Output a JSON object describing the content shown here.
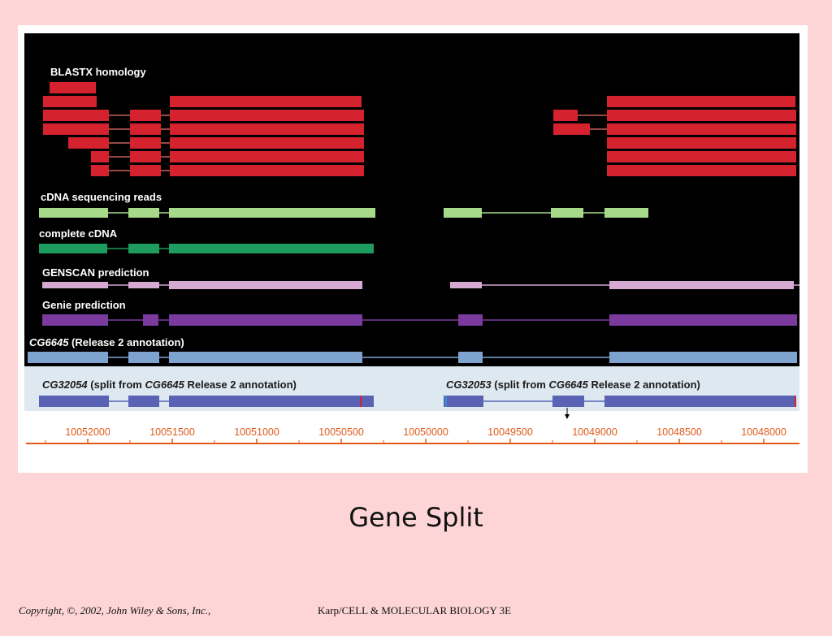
{
  "slide": {
    "title": "Gene Split",
    "copyright": "Copyright, ©, 2002, John Wiley & Sons, Inc.,",
    "source": "Karp/CELL & MOLECULAR BIOLOGY 3E"
  },
  "colors": {
    "background": "#fdd5d6",
    "panel": "#000000",
    "blastx": "#d4222e",
    "cdna_reads": "#a6d98a",
    "complete_cdna": "#1e9b5e",
    "genscan": "#d6a9d3",
    "genie": "#7b3b9e",
    "release2": "#7ea3cf",
    "split": "#5a62b4",
    "axis": "#e05a1a"
  },
  "tracks": {
    "blastx": {
      "label": "BLASTX homology"
    },
    "cdna_reads": {
      "label": "cDNA sequencing reads"
    },
    "complete_cdna": {
      "label": "complete cDNA"
    },
    "genscan": {
      "label": "GENSCAN prediction"
    },
    "genie": {
      "label": "Genie prediction"
    },
    "release2": {
      "label_italic": "CG6645",
      "label_rest": " (Release 2 annotation)"
    },
    "split_left": {
      "gene": "CG32054",
      "mid": " (split from ",
      "parent": "CG6645",
      "rest": " Release 2 annotation)"
    },
    "split_right": {
      "gene": "CG32053",
      "mid": " (split from ",
      "parent": "CG6645",
      "rest": " Release 2 annotation)"
    }
  },
  "axis": {
    "ticks": [
      "10052000",
      "10051500",
      "10051000",
      "10050500",
      "10050000",
      "10049500",
      "10049000",
      "10048500",
      "10048000"
    ]
  }
}
